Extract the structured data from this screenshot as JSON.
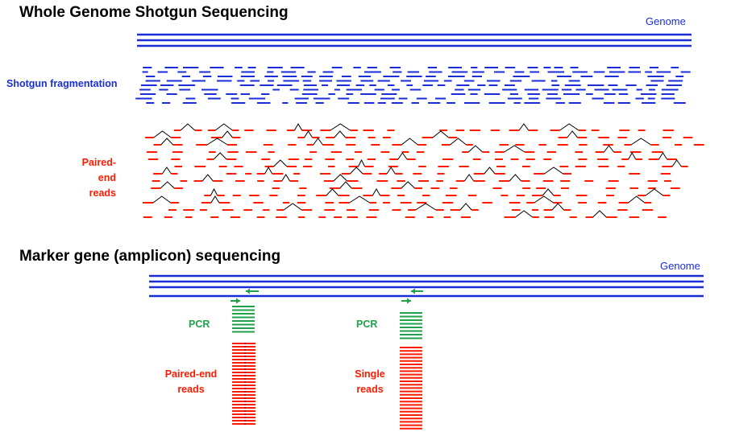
{
  "wgs": {
    "title": "Whole Genome Shotgun Sequencing",
    "genome_label": "Genome",
    "fragmentation_label": "Shotgun fragmentation",
    "paired_end_label": "Paired-end\nreads"
  },
  "amplicon": {
    "title": "Marker gene (amplicon) sequencing",
    "genome_label": "Genome",
    "left": {
      "pcr_label": "PCR",
      "reads_label": "Paired-end\nreads"
    },
    "right": {
      "pcr_label": "PCR",
      "reads_label": "Single\nreads"
    }
  },
  "colors": {
    "genome": "#1a2ed8",
    "fragments": "#1a2ed8",
    "reads": "#ff1a00",
    "pcr": "#21a24a",
    "connector": "#000000"
  }
}
